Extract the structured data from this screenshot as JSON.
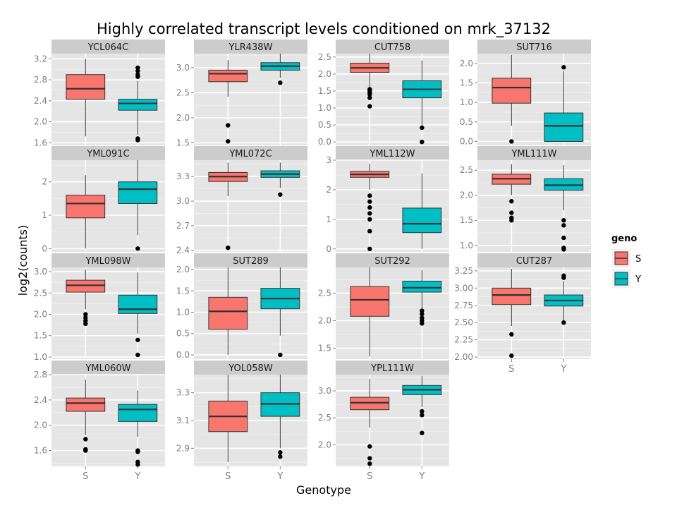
{
  "chart_data": {
    "type": "box",
    "title": "Highly correlated transcript levels conditioned on mrk_37132",
    "xlabel": "Genotype",
    "ylabel": "log2(counts)",
    "categories": [
      "S",
      "Y"
    ],
    "legend": {
      "title": "geno",
      "position": "right",
      "entries": [
        {
          "label": "S",
          "color": "#F8766D"
        },
        {
          "label": "Y",
          "color": "#00BFC4"
        }
      ]
    },
    "colors": {
      "S": "#F8766D",
      "Y": "#00BFC4",
      "panel_bg": "#E5E5E5",
      "strip_bg": "#CCCCCC"
    },
    "grid": true,
    "panels": [
      {
        "name": "YCL064C",
        "ylim": [
          1.55,
          3.3
        ],
        "yticks": [
          "1.6",
          "2.0",
          "2.4",
          "2.8",
          "3.2"
        ],
        "boxes": [
          {
            "geno": "S",
            "min": 1.72,
            "q1": 2.43,
            "median": 2.63,
            "q3": 2.9,
            "max": 3.2,
            "outliers": []
          },
          {
            "geno": "Y",
            "min": 1.75,
            "q1": 2.22,
            "median": 2.35,
            "q3": 2.43,
            "max": 2.78,
            "outliers": [
              1.65,
              1.68,
              2.86,
              2.9,
              2.97,
              3.03
            ]
          }
        ]
      },
      {
        "name": "YLR438W",
        "ylim": [
          1.45,
          3.28
        ],
        "yticks": [
          "1.5",
          "2.0",
          "2.5",
          "3.0"
        ],
        "boxes": [
          {
            "geno": "S",
            "min": 2.42,
            "q1": 2.72,
            "median": 2.88,
            "q3": 2.95,
            "max": 3.15,
            "outliers": [
              1.85,
              1.53
            ]
          },
          {
            "geno": "Y",
            "min": 2.8,
            "q1": 2.95,
            "median": 3.03,
            "q3": 3.1,
            "max": 3.28,
            "outliers": [
              2.7
            ]
          }
        ]
      },
      {
        "name": "CUT758",
        "ylim": [
          -0.1,
          2.6
        ],
        "yticks": [
          "0.0",
          "0.5",
          "1.0",
          "1.5",
          "2.0",
          "2.5"
        ],
        "boxes": [
          {
            "geno": "S",
            "min": 1.6,
            "q1": 2.05,
            "median": 2.18,
            "q3": 2.32,
            "max": 2.6,
            "outliers": [
              1.05,
              1.3,
              1.4,
              1.45,
              1.5,
              1.55
            ]
          },
          {
            "geno": "Y",
            "min": 0.5,
            "q1": 1.3,
            "median": 1.55,
            "q3": 1.8,
            "max": 2.4,
            "outliers": [
              0.42,
              0.0
            ]
          }
        ]
      },
      {
        "name": "SUT716",
        "ylim": [
          -0.1,
          2.25
        ],
        "yticks": [
          "0.0",
          "0.5",
          "1.0",
          "1.5",
          "2.0"
        ],
        "boxes": [
          {
            "geno": "S",
            "min": 0.4,
            "q1": 0.98,
            "median": 1.38,
            "q3": 1.62,
            "max": 2.22,
            "outliers": [
              0.0
            ]
          },
          {
            "geno": "Y",
            "min": 0.0,
            "q1": 0.0,
            "median": 0.4,
            "q3": 0.73,
            "max": 1.8,
            "outliers": [
              1.9
            ]
          }
        ]
      },
      {
        "name": "YML091C",
        "ylim": [
          -0.1,
          2.65
        ],
        "yticks": [
          "0",
          "1",
          "2"
        ],
        "boxes": [
          {
            "geno": "S",
            "min": 0.0,
            "q1": 0.92,
            "median": 1.35,
            "q3": 1.6,
            "max": 2.2,
            "outliers": []
          },
          {
            "geno": "Y",
            "min": 0.4,
            "q1": 1.35,
            "median": 1.78,
            "q3": 2.0,
            "max": 2.65,
            "outliers": [
              0.0
            ]
          }
        ]
      },
      {
        "name": "YML072C",
        "ylim": [
          2.38,
          3.5
        ],
        "yticks": [
          "2.4",
          "2.7",
          "3.0",
          "3.3"
        ],
        "boxes": [
          {
            "geno": "S",
            "min": 3.06,
            "q1": 3.24,
            "median": 3.3,
            "q3": 3.35,
            "max": 3.47,
            "outliers": [
              2.43
            ]
          },
          {
            "geno": "Y",
            "min": 3.16,
            "q1": 3.29,
            "median": 3.33,
            "q3": 3.37,
            "max": 3.47,
            "outliers": [
              3.08
            ]
          }
        ]
      },
      {
        "name": "YML112W",
        "ylim": [
          -0.1,
          3.0
        ],
        "yticks": [
          "0",
          "1",
          "2",
          "3"
        ],
        "boxes": [
          {
            "geno": "S",
            "min": 2.0,
            "q1": 2.42,
            "median": 2.52,
            "q3": 2.62,
            "max": 2.88,
            "outliers": [
              0.0,
              0.6,
              1.0,
              1.2,
              1.4,
              1.6,
              1.8
            ]
          },
          {
            "geno": "Y",
            "min": 0.0,
            "q1": 0.55,
            "median": 0.85,
            "q3": 1.38,
            "max": 2.55,
            "outliers": []
          }
        ]
      },
      {
        "name": "YML111W",
        "ylim": [
          0.87,
          2.7
        ],
        "yticks": [
          "1.0",
          "1.5",
          "2.0",
          "2.5"
        ],
        "boxes": [
          {
            "geno": "S",
            "min": 2.0,
            "q1": 2.22,
            "median": 2.33,
            "q3": 2.42,
            "max": 2.62,
            "outliers": [
              1.5,
              1.55,
              1.65,
              1.88
            ]
          },
          {
            "geno": "Y",
            "min": 1.7,
            "q1": 2.1,
            "median": 2.2,
            "q3": 2.33,
            "max": 2.6,
            "outliers": [
              0.92,
              0.95,
              1.15,
              1.4,
              1.5
            ]
          }
        ]
      },
      {
        "name": "YML098W",
        "ylim": [
          0.95,
          3.1
        ],
        "yticks": [
          "1.0",
          "1.5",
          "2.0",
          "2.5",
          "3.0"
        ],
        "boxes": [
          {
            "geno": "S",
            "min": 2.12,
            "q1": 2.52,
            "median": 2.68,
            "q3": 2.8,
            "max": 3.05,
            "outliers": [
              1.78,
              1.85,
              1.92,
              2.0
            ]
          },
          {
            "geno": "Y",
            "min": 1.55,
            "q1": 2.02,
            "median": 2.12,
            "q3": 2.45,
            "max": 2.98,
            "outliers": [
              1.05,
              1.4
            ]
          }
        ]
      },
      {
        "name": "SUT289",
        "ylim": [
          -0.1,
          2.05
        ],
        "yticks": [
          "0.0",
          "0.5",
          "1.0",
          "1.5",
          "2.0"
        ],
        "boxes": [
          {
            "geno": "S",
            "min": 0.0,
            "q1": 0.6,
            "median": 1.02,
            "q3": 1.35,
            "max": 2.05,
            "outliers": []
          },
          {
            "geno": "Y",
            "min": 0.45,
            "q1": 1.08,
            "median": 1.32,
            "q3": 1.56,
            "max": 2.05,
            "outliers": [
              0.0
            ]
          }
        ]
      },
      {
        "name": "SUT292",
        "ylim": [
          1.3,
          2.97
        ],
        "yticks": [
          "1.5",
          "2.0",
          "2.5"
        ],
        "boxes": [
          {
            "geno": "S",
            "min": 1.35,
            "q1": 2.08,
            "median": 2.38,
            "q3": 2.62,
            "max": 2.97,
            "outliers": []
          },
          {
            "geno": "Y",
            "min": 2.22,
            "q1": 2.52,
            "median": 2.6,
            "q3": 2.72,
            "max": 2.92,
            "outliers": [
              1.95,
              2.0,
              2.05,
              2.12,
              2.18
            ]
          }
        ]
      },
      {
        "name": "CUT287",
        "ylim": [
          1.97,
          3.3
        ],
        "yticks": [
          "2.00",
          "2.25",
          "2.50",
          "2.75",
          "3.00",
          "3.25"
        ],
        "boxes": [
          {
            "geno": "S",
            "min": 2.45,
            "q1": 2.76,
            "median": 2.9,
            "q3": 3.0,
            "max": 3.28,
            "outliers": [
              2.02,
              2.33
            ]
          },
          {
            "geno": "Y",
            "min": 2.5,
            "q1": 2.74,
            "median": 2.82,
            "q3": 2.9,
            "max": 3.1,
            "outliers": [
              2.5,
              3.15,
              3.18
            ]
          }
        ]
      },
      {
        "name": "YML060W",
        "ylim": [
          1.35,
          2.8
        ],
        "yticks": [
          "1.6",
          "2.0",
          "2.4",
          "2.8"
        ],
        "boxes": [
          {
            "geno": "S",
            "min": 1.85,
            "q1": 2.22,
            "median": 2.35,
            "q3": 2.43,
            "max": 2.72,
            "outliers": [
              1.6,
              1.62,
              1.78
            ]
          },
          {
            "geno": "Y",
            "min": 1.82,
            "q1": 2.06,
            "median": 2.25,
            "q3": 2.33,
            "max": 2.55,
            "outliers": [
              1.38,
              1.42,
              1.58,
              1.6
            ]
          }
        ]
      },
      {
        "name": "YOL058W",
        "ylim": [
          2.77,
          3.43
        ],
        "yticks": [
          "2.9",
          "3.1",
          "3.3"
        ],
        "boxes": [
          {
            "geno": "S",
            "min": 2.8,
            "q1": 3.02,
            "median": 3.13,
            "q3": 3.24,
            "max": 3.43,
            "outliers": []
          },
          {
            "geno": "Y",
            "min": 2.9,
            "q1": 3.13,
            "median": 3.22,
            "q3": 3.3,
            "max": 3.43,
            "outliers": [
              2.84,
              2.87
            ]
          }
        ]
      },
      {
        "name": "YPL111W",
        "ylim": [
          1.6,
          3.3
        ],
        "yticks": [
          "2.0",
          "2.5",
          "3.0"
        ],
        "boxes": [
          {
            "geno": "S",
            "min": 2.32,
            "q1": 2.65,
            "median": 2.78,
            "q3": 2.88,
            "max": 3.22,
            "outliers": [
              1.65,
              1.75,
              1.97
            ]
          },
          {
            "geno": "Y",
            "min": 2.7,
            "q1": 2.93,
            "median": 3.02,
            "q3": 3.1,
            "max": 3.28,
            "outliers": [
              2.22,
              2.55,
              2.62
            ]
          }
        ]
      }
    ]
  }
}
